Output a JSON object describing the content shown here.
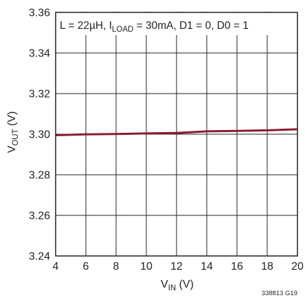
{
  "chart_data": {
    "type": "line",
    "annotation": {
      "before": "L = 22µH, I",
      "subscript": "LOAD",
      "after": " = 30mA, D1 = 0, D0 = 1"
    },
    "xlabel": {
      "main": "V",
      "sub": "IN",
      "unit": " (V)"
    },
    "ylabel": {
      "main": "V",
      "sub": "OUT",
      "unit": " (V)"
    },
    "xlim": [
      4,
      20
    ],
    "ylim": [
      3.24,
      3.36
    ],
    "x_ticks": [
      4,
      6,
      8,
      10,
      12,
      14,
      16,
      18,
      20
    ],
    "x_tick_labels": [
      "4",
      "6",
      "8",
      "10",
      "12",
      "14",
      "16",
      "18",
      "20"
    ],
    "y_ticks": [
      3.24,
      3.26,
      3.28,
      3.3,
      3.32,
      3.34,
      3.36
    ],
    "y_tick_labels": [
      "3.24",
      "3.26",
      "3.28",
      "3.30",
      "3.32",
      "3.34",
      "3.36"
    ],
    "grid": true,
    "series": [
      {
        "color": "#8b1a2e",
        "x": [
          4,
          6,
          8,
          10,
          12,
          13.5,
          14,
          16,
          18,
          20
        ],
        "y": [
          3.2995,
          3.2999,
          3.3001,
          3.3004,
          3.3006,
          3.3012,
          3.3014,
          3.3016,
          3.3019,
          3.3024
        ]
      }
    ],
    "figure_id": "338813 G19"
  },
  "colors": {
    "grid": "#231f20",
    "frame": "#231f20",
    "text": "#231f20",
    "annotation_bg": "#ffffff"
  }
}
